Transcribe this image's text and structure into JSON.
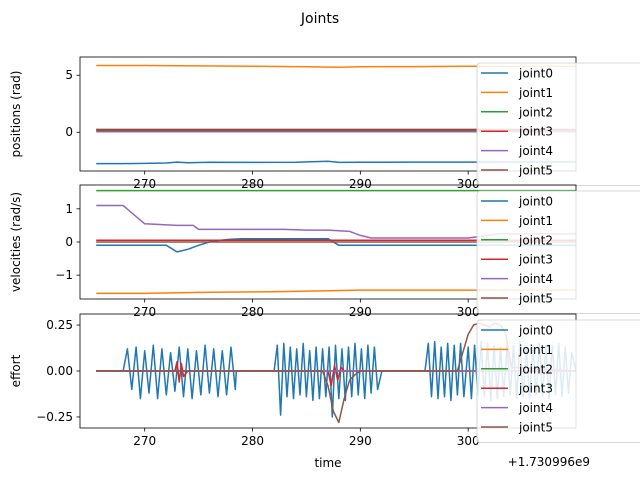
{
  "chart_data": {
    "title": "Joints",
    "offset_label": "+1.730996e9",
    "x_tick_labels": [
      "270",
      "280",
      "290",
      "300"
    ],
    "x_ticks": [
      270,
      280,
      290,
      300
    ],
    "xlim": [
      264.0,
      310.0
    ],
    "xlabel": "time",
    "legend_labels": [
      "joint0",
      "joint1",
      "joint2",
      "joint3",
      "joint4",
      "joint5"
    ],
    "legend_position": "right (clipped)",
    "colors": [
      "#1f77b4",
      "#ff7f0e",
      "#2ca02c",
      "#d62728",
      "#9467bd",
      "#8c564b"
    ],
    "subplots": [
      {
        "type": "line",
        "ylabel": "positions (rad)",
        "ylim": [
          -3.4,
          6.6
        ],
        "yticks": [
          0,
          5
        ],
        "ytick_labels": [
          "0",
          "5"
        ],
        "series": [
          {
            "name": "joint0",
            "x": [
              265.5,
              268,
              270,
              272,
              273,
              274,
              276,
              280,
              284,
              287,
              288,
              290,
              295,
              300,
              305,
              310
            ],
            "y": [
              -2.75,
              -2.75,
              -2.73,
              -2.7,
              -2.62,
              -2.68,
              -2.64,
              -2.65,
              -2.63,
              -2.55,
              -2.65,
              -2.64,
              -2.62,
              -2.62,
              -2.61,
              -2.6
            ]
          },
          {
            "name": "joint1",
            "x": [
              265.5,
              270,
              275,
              280,
              285,
              288,
              290,
              295,
              300,
              305,
              310
            ],
            "y": [
              5.85,
              5.85,
              5.82,
              5.78,
              5.75,
              5.7,
              5.75,
              5.76,
              5.78,
              5.78,
              5.78
            ]
          },
          {
            "name": "joint2",
            "x": [
              265.5,
              310
            ],
            "y": [
              0.25,
              0.25
            ]
          },
          {
            "name": "joint3",
            "x": [
              265.5,
              310
            ],
            "y": [
              0.22,
              0.22
            ]
          },
          {
            "name": "joint4",
            "x": [
              265.5,
              310
            ],
            "y": [
              0.05,
              0.05
            ]
          },
          {
            "name": "joint5",
            "x": [
              265.5,
              310
            ],
            "y": [
              0.15,
              0.15
            ]
          }
        ]
      },
      {
        "type": "line",
        "ylabel": "velocities (rad/s)",
        "ylim": [
          -1.72,
          1.72
        ],
        "yticks": [
          -1,
          0,
          1
        ],
        "ytick_labels": [
          "−1",
          "0",
          "1"
        ],
        "series": [
          {
            "name": "joint0",
            "x": [
              265.5,
              272,
              273,
              274,
              275,
              276,
              277,
              278,
              279,
              280,
              282,
              287,
              288,
              290,
              300,
              310
            ],
            "y": [
              -0.1,
              -0.1,
              -0.3,
              -0.22,
              -0.1,
              0.0,
              0.05,
              0.08,
              0.1,
              0.1,
              0.1,
              0.1,
              -0.1,
              -0.1,
              -0.1,
              -0.1
            ]
          },
          {
            "name": "joint1",
            "x": [
              265.5,
              270,
              275,
              282,
              287,
              290,
              300,
              310
            ],
            "y": [
              -1.55,
              -1.55,
              -1.52,
              -1.5,
              -1.47,
              -1.45,
              -1.45,
              -1.45
            ]
          },
          {
            "name": "joint2",
            "x": [
              265.5,
              310
            ],
            "y": [
              1.55,
              1.55
            ]
          },
          {
            "name": "joint3",
            "x": [
              265.5,
              310
            ],
            "y": [
              0.05,
              0.05
            ]
          },
          {
            "name": "joint4",
            "x": [
              265.5,
              268,
              270,
              273,
              274.5,
              275,
              283,
              285,
              287,
              289,
              290,
              291,
              292,
              300,
              303,
              305,
              310
            ],
            "y": [
              1.1,
              1.1,
              0.55,
              0.5,
              0.5,
              0.38,
              0.38,
              0.36,
              0.36,
              0.32,
              0.2,
              0.12,
              0.12,
              0.12,
              0.25,
              0.25,
              0.25
            ]
          },
          {
            "name": "joint5",
            "x": [
              265.5,
              310
            ],
            "y": [
              0.0,
              0.0
            ]
          }
        ]
      },
      {
        "type": "line",
        "ylabel": "effort",
        "ylim": [
          -0.31,
          0.31
        ],
        "yticks": [
          -0.25,
          0,
          0.25
        ],
        "ytick_labels": [
          "−0.25",
          "0.00",
          "0.25"
        ],
        "series": [
          {
            "name": "joint0",
            "x": [
              265.5,
              268,
              268.4,
              268.8,
              269.2,
              269.6,
              270,
              270.4,
              270.8,
              271.2,
              271.6,
              272,
              272.4,
              272.8,
              273.2,
              273.6,
              274,
              274.4,
              274.8,
              275.2,
              275.6,
              276,
              276.4,
              276.8,
              277.2,
              277.6,
              278,
              278.4,
              278.5,
              282,
              282.3,
              282.6,
              282.9,
              283.2,
              283.5,
              283.8,
              284.1,
              284.4,
              284.7,
              285,
              285.3,
              285.6,
              285.9,
              286.2,
              286.5,
              286.8,
              287.1,
              287.4,
              287.7,
              288,
              288.3,
              288.6,
              288.9,
              289.2,
              289.5,
              289.8,
              290.1,
              290.4,
              290.7,
              291,
              291.3,
              291.6,
              292,
              296,
              296.3,
              296.6,
              296.9,
              297.2,
              297.5,
              297.8,
              298.1,
              298.4,
              298.7,
              299,
              299.3,
              299.6,
              300,
              300.3,
              300.6,
              300.9,
              301.2,
              301.5,
              301.8,
              302.1,
              302.4,
              302.7,
              303,
              303.3,
              303.6,
              303.9,
              304.2,
              304.5,
              304.8,
              305.1,
              305.4,
              305.7,
              306,
              306.3,
              306.6,
              306.9,
              307.2,
              307.5,
              307.8,
              308.1,
              308.4,
              308.7,
              309,
              309.3,
              309.6,
              310
            ],
            "y": [
              0,
              0,
              0.12,
              -0.1,
              0.13,
              -0.15,
              0.11,
              -0.12,
              0.14,
              -0.15,
              0.12,
              -0.13,
              0.1,
              -0.11,
              0.13,
              -0.14,
              0.12,
              -0.15,
              0.11,
              -0.13,
              0.14,
              -0.12,
              0.12,
              -0.14,
              0.11,
              -0.13,
              0.13,
              -0.1,
              0,
              0,
              0.14,
              -0.24,
              0.15,
              -0.14,
              0.13,
              -0.15,
              0.12,
              -0.13,
              0.15,
              -0.14,
              0.11,
              -0.16,
              0.13,
              -0.15,
              0.12,
              -0.14,
              0.13,
              -0.25,
              0.14,
              -0.15,
              0.12,
              -0.16,
              0.13,
              -0.14,
              0.15,
              -0.13,
              0.12,
              -0.15,
              0.14,
              -0.12,
              0.13,
              -0.1,
              0,
              0,
              0.15,
              -0.14,
              0.16,
              -0.15,
              0.13,
              -0.14,
              0.15,
              -0.16,
              0.14,
              -0.13,
              0.15,
              -0.14,
              0.13,
              -0.15,
              0.14,
              -0.13,
              0.16,
              -0.14,
              0.15,
              -0.16,
              0.14,
              -0.15,
              0.13,
              -0.14,
              0.15,
              -0.13,
              0.14,
              -0.15,
              0.16,
              -0.14,
              0.13,
              -0.15,
              0.14,
              -0.13,
              0.15,
              -0.14,
              0.13,
              -0.15,
              0.14,
              -0.13,
              0.15,
              -0.14,
              0.13,
              -0.12,
              0.1,
              0
            ]
          },
          {
            "name": "joint1",
            "x": [
              265.5,
              310
            ],
            "y": [
              0,
              0
            ]
          },
          {
            "name": "joint2",
            "x": [
              265.5,
              310
            ],
            "y": [
              0,
              0
            ]
          },
          {
            "name": "joint3",
            "x": [
              265.5,
              272.8,
              273,
              273.2,
              273.4,
              273.6,
              274,
              287,
              287.3,
              287.6,
              287.9,
              288.2,
              288.5,
              310
            ],
            "y": [
              0,
              0,
              0.05,
              -0.06,
              0.04,
              -0.03,
              0,
              0,
              -0.08,
              0.03,
              -0.05,
              0.02,
              0,
              0
            ]
          },
          {
            "name": "joint4",
            "x": [
              265.5,
              310
            ],
            "y": [
              0,
              0
            ]
          },
          {
            "name": "joint5",
            "x": [
              265.5,
              286.5,
              287,
              287.5,
              288,
              288.5,
              289,
              289.5,
              290,
              299,
              299.5,
              300,
              300.5,
              301,
              301.5,
              302,
              302.5,
              303,
              303.5,
              304,
              310
            ],
            "y": [
              0,
              0,
              -0.08,
              -0.22,
              -0.28,
              -0.15,
              -0.05,
              -0.02,
              0,
              0,
              0.1,
              0.2,
              0.25,
              0.26,
              0.25,
              0.24,
              0.26,
              0.25,
              0.2,
              0.02,
              0
            ]
          }
        ]
      }
    ]
  }
}
